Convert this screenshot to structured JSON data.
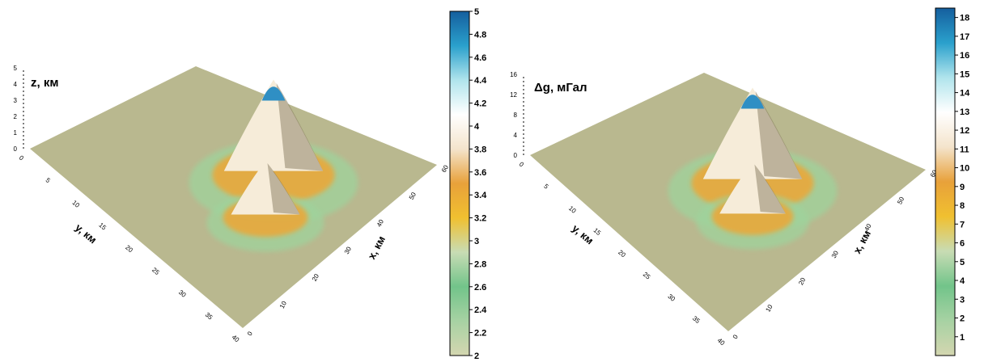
{
  "colors": {
    "surface_base": "#b9b88f",
    "ramp": [
      "#d4d6b0",
      "#a7d2a3",
      "#72c48a",
      "#c8dcb4",
      "#f0c030",
      "#e8a13a",
      "#f4e4cc",
      "#ffffff",
      "#b0e4ec",
      "#2aa0cc",
      "#155f9e"
    ]
  },
  "chart_data": [
    {
      "type": "surface3d",
      "title": "z, км",
      "xlabel": "x, км",
      "ylabel": "y, км",
      "x_ticks": [
        "0",
        "10",
        "20",
        "30",
        "40",
        "50",
        "60"
      ],
      "y_ticks": [
        "0",
        "5",
        "10",
        "15",
        "20",
        "25",
        "30",
        "35",
        "40"
      ],
      "z_ticks": [
        "0",
        "1",
        "2",
        "3",
        "4",
        "5"
      ],
      "colorbar": {
        "min": 2,
        "max": 5,
        "ticks": [
          "2",
          "2.2",
          "2.4",
          "2.6",
          "2.8",
          "3",
          "3.2",
          "3.4",
          "3.6",
          "3.8",
          "4",
          "4.2",
          "4.4",
          "4.6",
          "4.8",
          "5"
        ]
      },
      "peaks": [
        {
          "x": 33,
          "y": 18,
          "z": 5.0
        },
        {
          "x": 21,
          "y": 20,
          "z": 3.9
        }
      ]
    },
    {
      "type": "surface3d",
      "title": "Δg, мГал",
      "xlabel": "x, км",
      "ylabel": "y, км",
      "x_ticks": [
        "0",
        "10",
        "20",
        "30",
        "40",
        "50",
        "60"
      ],
      "y_ticks": [
        "0",
        "5",
        "10",
        "15",
        "20",
        "25",
        "30",
        "35",
        "40"
      ],
      "z_ticks": [
        "0",
        "4",
        "8",
        "12",
        "16"
      ],
      "colorbar": {
        "min": 0,
        "max": 18.5,
        "ticks": [
          "1",
          "2",
          "3",
          "4",
          "5",
          "6",
          "7",
          "8",
          "9",
          "10",
          "11",
          "12",
          "13",
          "14",
          "15",
          "16",
          "17",
          "18"
        ]
      },
      "peaks": [
        {
          "x": 33,
          "y": 18,
          "z": 18.5
        },
        {
          "x": 21,
          "y": 20,
          "z": 11.0
        }
      ]
    }
  ]
}
